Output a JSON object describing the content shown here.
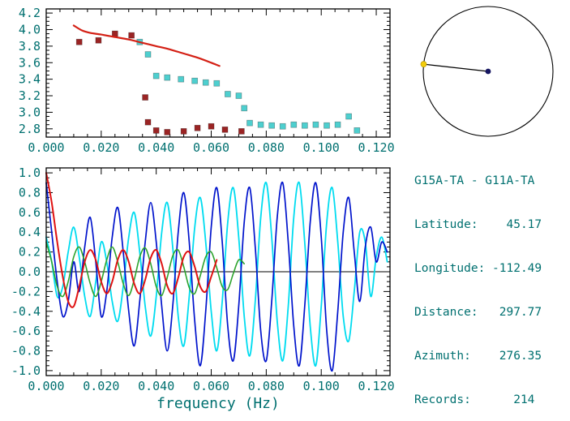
{
  "palette": {
    "label_color": "#007070",
    "frame_color": "#000000",
    "background": "#ffffff"
  },
  "station_info": {
    "lines": [
      "G15A-TA - G11A-TA",
      "Latitude:    45.17",
      "Longitude: -112.49",
      "Distance:   297.77",
      "Azimuth:    276.35",
      "Records:      214"
    ]
  },
  "azimuth_diagram": {
    "azimuth_deg": 276.35,
    "center_dot_color": "#151560",
    "endpoint_dot_color": "#f2cc0a",
    "circle_color": "#000000"
  },
  "chart_data": [
    {
      "type": "scatter",
      "title": "",
      "xlabel": "",
      "ylabel": "",
      "xlim": [
        0,
        0.125
      ],
      "ylim": [
        2.7,
        4.25
      ],
      "xticks": [
        0,
        0.02,
        0.04,
        0.06,
        0.08,
        0.1,
        0.12
      ],
      "yticks": [
        2.8,
        3.0,
        3.2,
        3.4,
        3.6,
        3.8,
        4.0,
        4.2
      ],
      "xminor": 0.005,
      "yminor": 0.05,
      "xtick_decimals": 3,
      "ytick_decimals": 1,
      "zeroline": false,
      "series": [
        {
          "name": "dispersion-dark-red-squares",
          "marker": "square",
          "color": "#9b2424",
          "points": [
            [
              0.012,
              3.85
            ],
            [
              0.019,
              3.87
            ],
            [
              0.025,
              3.95
            ],
            [
              0.031,
              3.93
            ],
            [
              0.036,
              3.18
            ],
            [
              0.037,
              2.88
            ],
            [
              0.04,
              2.78
            ],
            [
              0.044,
              2.76
            ],
            [
              0.05,
              2.77
            ],
            [
              0.055,
              2.81
            ],
            [
              0.06,
              2.83
            ],
            [
              0.065,
              2.79
            ],
            [
              0.071,
              2.77
            ]
          ]
        },
        {
          "name": "dispersion-cyan-squares",
          "marker": "square",
          "color": "#4ecfcf",
          "points": [
            [
              0.034,
              3.85
            ],
            [
              0.037,
              3.7
            ],
            [
              0.04,
              3.44
            ],
            [
              0.044,
              3.42
            ],
            [
              0.049,
              3.4
            ],
            [
              0.054,
              3.38
            ],
            [
              0.058,
              3.36
            ],
            [
              0.062,
              3.35
            ],
            [
              0.066,
              3.22
            ],
            [
              0.07,
              3.2
            ],
            [
              0.072,
              3.05
            ],
            [
              0.074,
              2.87
            ],
            [
              0.078,
              2.85
            ],
            [
              0.082,
              2.84
            ],
            [
              0.086,
              2.83
            ],
            [
              0.09,
              2.85
            ],
            [
              0.094,
              2.84
            ],
            [
              0.098,
              2.85
            ],
            [
              0.102,
              2.84
            ],
            [
              0.106,
              2.85
            ],
            [
              0.11,
              2.95
            ],
            [
              0.113,
              2.78
            ]
          ]
        },
        {
          "name": "reference-dispersion-curve",
          "color": "#d42015",
          "width": 2.2,
          "points": [
            [
              0.01,
              4.05
            ],
            [
              0.013,
              3.99
            ],
            [
              0.016,
              3.96
            ],
            [
              0.02,
              3.94
            ],
            [
              0.025,
              3.91
            ],
            [
              0.03,
              3.88
            ],
            [
              0.035,
              3.84
            ],
            [
              0.04,
              3.8
            ],
            [
              0.045,
              3.76
            ],
            [
              0.05,
              3.71
            ],
            [
              0.055,
              3.66
            ],
            [
              0.06,
              3.6
            ],
            [
              0.063,
              3.56
            ]
          ]
        }
      ]
    },
    {
      "type": "line",
      "title": "",
      "xlabel": "frequency (Hz)",
      "ylabel": "",
      "xlim": [
        0,
        0.125
      ],
      "ylim": [
        -1.05,
        1.05
      ],
      "xticks": [
        0,
        0.02,
        0.04,
        0.06,
        0.08,
        0.1,
        0.12
      ],
      "yticks": [
        -1.0,
        -0.8,
        -0.6,
        -0.4,
        -0.2,
        0.0,
        0.2,
        0.4,
        0.6,
        0.8,
        1.0
      ],
      "xminor": 0.005,
      "yminor": 0.05,
      "xtick_decimals": 3,
      "ytick_decimals": 1,
      "zeroline": true,
      "series": [
        {
          "name": "waveform-cyan",
          "color": "#00dcf0",
          "width": 1.8,
          "x0": 0,
          "dx": 0.002,
          "values": [
            0.35,
            0.1,
            -0.25,
            -0.15,
            0.2,
            0.45,
            0.15,
            -0.25,
            -0.45,
            -0.1,
            0.3,
            0.1,
            -0.3,
            -0.5,
            -0.15,
            0.35,
            0.6,
            0.2,
            -0.35,
            -0.65,
            -0.25,
            0.4,
            0.7,
            0.25,
            -0.45,
            -0.75,
            -0.25,
            0.45,
            0.75,
            0.3,
            -0.4,
            -0.8,
            -0.3,
            0.5,
            0.85,
            0.35,
            -0.45,
            -0.85,
            -0.3,
            0.55,
            0.9,
            0.35,
            -0.5,
            -0.9,
            -0.35,
            0.55,
            0.9,
            0.3,
            -0.55,
            -0.95,
            -0.35,
            0.5,
            0.85,
            0.3,
            -0.45,
            -0.7,
            -0.2,
            0.4,
            0.3,
            -0.25,
            0.15,
            0.35,
            0.1
          ]
        },
        {
          "name": "waveform-blue",
          "color": "#0013cc",
          "width": 1.7,
          "x0": 0,
          "dx": 0.002,
          "values": [
            0.9,
            0.4,
            -0.1,
            -0.45,
            -0.3,
            0.1,
            -0.2,
            0.25,
            0.55,
            0.1,
            -0.45,
            -0.2,
            0.35,
            0.65,
            0.2,
            -0.4,
            -0.75,
            -0.3,
            0.3,
            0.7,
            0.3,
            -0.35,
            -0.8,
            -0.35,
            0.4,
            0.8,
            0.3,
            -0.5,
            -0.95,
            -0.4,
            0.45,
            0.85,
            0.3,
            -0.55,
            -0.9,
            -0.35,
            0.5,
            0.85,
            0.25,
            -0.6,
            -0.9,
            -0.3,
            0.55,
            0.9,
            0.3,
            -0.55,
            -0.95,
            -0.35,
            0.5,
            0.9,
            0.35,
            -0.6,
            -1.0,
            -0.4,
            0.4,
            0.75,
            0.2,
            -0.3,
            0.25,
            0.45,
            0.1,
            0.3,
            0.2
          ]
        },
        {
          "name": "fit-green",
          "color": "#2da32d",
          "width": 1.6,
          "x0": 0,
          "dx": 0.002,
          "values": [
            0.3,
            0.1,
            -0.15,
            -0.25,
            -0.1,
            0.15,
            0.25,
            0.1,
            -0.12,
            -0.25,
            -0.1,
            0.12,
            0.25,
            0.1,
            -0.12,
            -0.24,
            -0.08,
            0.15,
            0.24,
            0.08,
            -0.15,
            -0.24,
            -0.06,
            0.16,
            0.22,
            0.05,
            -0.16,
            -0.22,
            -0.04,
            0.15,
            0.2,
            0.04,
            -0.15,
            -0.18,
            -0.02,
            0.12,
            0.08
          ]
        },
        {
          "name": "fit-red",
          "color": "#e01212",
          "width": 2.0,
          "x0": 0,
          "dx": 0.002,
          "values": [
            1.0,
            0.7,
            0.3,
            -0.05,
            -0.3,
            -0.35,
            -0.15,
            0.1,
            0.22,
            0.12,
            -0.1,
            -0.22,
            -0.1,
            0.12,
            0.22,
            0.1,
            -0.12,
            -0.22,
            -0.08,
            0.14,
            0.22,
            0.08,
            -0.14,
            -0.22,
            -0.06,
            0.15,
            0.2,
            0.05,
            -0.15,
            -0.2,
            -0.05,
            0.12
          ]
        }
      ]
    }
  ]
}
